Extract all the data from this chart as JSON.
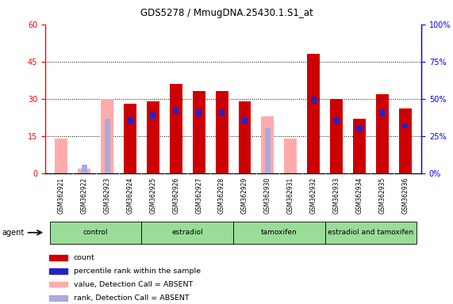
{
  "title": "GDS5278 / MmugDNA.25430.1.S1_at",
  "samples": [
    "GSM362921",
    "GSM362922",
    "GSM362923",
    "GSM362924",
    "GSM362925",
    "GSM362926",
    "GSM362927",
    "GSM362928",
    "GSM362929",
    "GSM362930",
    "GSM362931",
    "GSM362932",
    "GSM362933",
    "GSM362934",
    "GSM362935",
    "GSM362936"
  ],
  "count_values": [
    0,
    0,
    0,
    28,
    29,
    36,
    33,
    33,
    29,
    0,
    0,
    48,
    30,
    22,
    32,
    26
  ],
  "absent_values": [
    14,
    2,
    30,
    0,
    0,
    0,
    0,
    0,
    0,
    23,
    14,
    0,
    0,
    0,
    0,
    0
  ],
  "rank_present": [
    0,
    0,
    0,
    20,
    22,
    24,
    23,
    23,
    20,
    0,
    0,
    28,
    20,
    17,
    23,
    18
  ],
  "rank_absent_vals": [
    0,
    3.5,
    22,
    0,
    0,
    0,
    0,
    0,
    0,
    18,
    0,
    0,
    0,
    0,
    0,
    0
  ],
  "blue_seg_height": [
    0,
    0,
    0,
    2.5,
    2.5,
    2.5,
    2.5,
    2.5,
    2.5,
    0,
    0,
    3,
    2.5,
    2,
    2.5,
    2
  ],
  "absent_detection": [
    true,
    true,
    true,
    false,
    false,
    false,
    false,
    false,
    false,
    true,
    true,
    false,
    false,
    false,
    false,
    false
  ],
  "groups": [
    {
      "name": "control",
      "start": 0,
      "end": 3
    },
    {
      "name": "estradiol",
      "start": 4,
      "end": 7
    },
    {
      "name": "tamoxifen",
      "start": 8,
      "end": 11
    },
    {
      "name": "estradiol and tamoxifen",
      "start": 12,
      "end": 15
    }
  ],
  "ylim_left": [
    0,
    60
  ],
  "ylim_right": [
    0,
    100
  ],
  "yticks_left": [
    0,
    15,
    30,
    45,
    60
  ],
  "yticks_right": [
    0,
    25,
    50,
    75,
    100
  ],
  "color_red": "#cc0000",
  "color_pink": "#ffaaaa",
  "color_blue": "#2222cc",
  "color_lightblue": "#aaaadd",
  "color_group_bg": "#99dd99",
  "color_sample_bg": "#cccccc",
  "bar_width": 0.55
}
